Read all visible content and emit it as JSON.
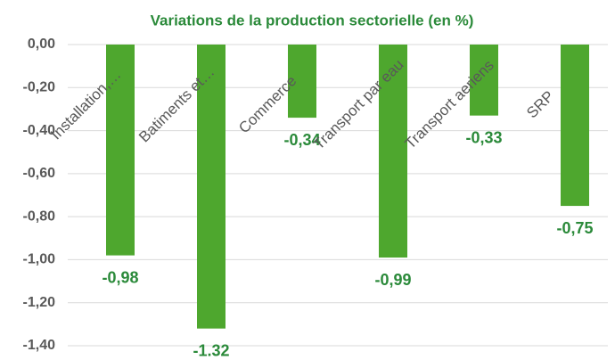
{
  "chart_data": {
    "type": "bar",
    "title": "Variations de la production sectorielle (en %)",
    "categories": [
      "Installation,…",
      "Batiments et…",
      "Commerce",
      "Transport par eau",
      "Transport aeriens",
      "SRP"
    ],
    "values": [
      -0.98,
      -1.32,
      -0.34,
      -0.99,
      -0.33,
      -0.75
    ],
    "value_labels": [
      "-0,98",
      "-1.32",
      "-0,34",
      "-0,99",
      "-0,33",
      "-0,75"
    ],
    "color": "#4ea72e",
    "ylim": [
      -1.4,
      0
    ],
    "yticks": [
      {
        "value": 0,
        "label": "0,00"
      },
      {
        "value": -0.2,
        "label": "-0,20"
      },
      {
        "value": -0.4,
        "label": "-0,40"
      },
      {
        "value": -0.6,
        "label": "-0,60"
      },
      {
        "value": -0.8,
        "label": "-0,80"
      },
      {
        "value": -1.0,
        "label": "-1,00"
      },
      {
        "value": -1.2,
        "label": "-1,20"
      },
      {
        "value": -1.4,
        "label": "-1,40"
      }
    ],
    "grid": true
  }
}
